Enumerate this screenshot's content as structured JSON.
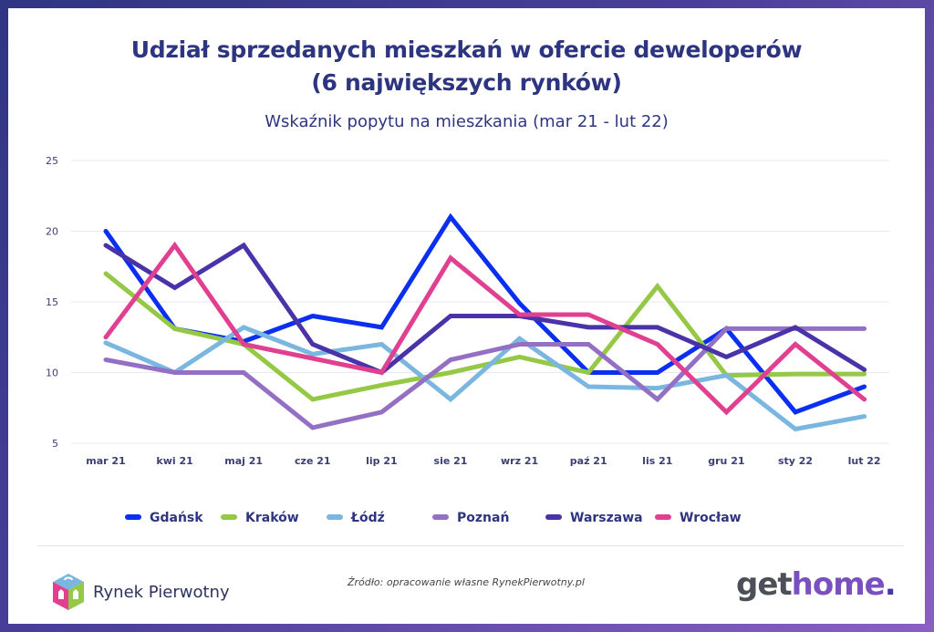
{
  "header": {
    "title_line1": "Udział sprzedanych mieszkań w ofercie deweloperów",
    "title_line2": "(6 największych rynków)",
    "subtitle": "Wskaźnik popytu na mieszkania (mar 21 - lut 22)"
  },
  "chart_data": {
    "type": "line",
    "title": "Udział sprzedanych mieszkań w ofercie deweloperów (6 największych rynków)",
    "subtitle": "Wskaźnik popytu na mieszkania (mar 21 - lut 22)",
    "xlabel": "",
    "ylabel": "",
    "categories": [
      "mar 21",
      "kwi 21",
      "maj 21",
      "cze 21",
      "lip 21",
      "sie 21",
      "wrz 21",
      "paź 21",
      "lis 21",
      "gru 21",
      "sty 22",
      "lut 22"
    ],
    "yticks": [
      5,
      10,
      15,
      20,
      25
    ],
    "ylim": [
      5,
      25
    ],
    "grid": true,
    "legend_position": "bottom",
    "series": [
      {
        "name": "Gdańsk",
        "color": "#0a2ff0",
        "values": [
          20,
          13.1,
          12.2,
          14.0,
          13.2,
          21.0,
          14.9,
          10.0,
          10.0,
          13.1,
          7.2,
          9.0
        ]
      },
      {
        "name": "Kraków",
        "color": "#94c845",
        "values": [
          17,
          13.1,
          12.0,
          8.1,
          9.1,
          10.0,
          11.1,
          10.0,
          16.1,
          9.8,
          9.9,
          9.9
        ]
      },
      {
        "name": "Łódź",
        "color": "#7ab7e0",
        "values": [
          12.1,
          10.0,
          13.2,
          11.3,
          12.0,
          8.1,
          12.4,
          9.0,
          8.9,
          9.8,
          6.0,
          6.9
        ]
      },
      {
        "name": "Poznań",
        "color": "#9470c4",
        "values": [
          10.9,
          10.0,
          10.0,
          6.1,
          7.2,
          10.9,
          12.0,
          12.0,
          8.1,
          13.1,
          13.1,
          13.1
        ]
      },
      {
        "name": "Warszawa",
        "color": "#4a32a8",
        "values": [
          19,
          16.0,
          19.0,
          12.0,
          10.0,
          14.0,
          14.0,
          13.2,
          13.2,
          11.1,
          13.2,
          10.2
        ]
      },
      {
        "name": "Wrocław",
        "color": "#e0408f",
        "values": [
          12.5,
          19.0,
          12.0,
          11.0,
          10.0,
          18.1,
          14.1,
          14.1,
          12.0,
          7.2,
          12.0,
          8.1
        ]
      }
    ]
  },
  "footer": {
    "brand_left": "Rynek Pierwotny",
    "source": "Źródło: opracowanie własne RynekPierwotny.pl",
    "brand_right_get": "get",
    "brand_right_home": "home",
    "brand_right_dot": "."
  }
}
